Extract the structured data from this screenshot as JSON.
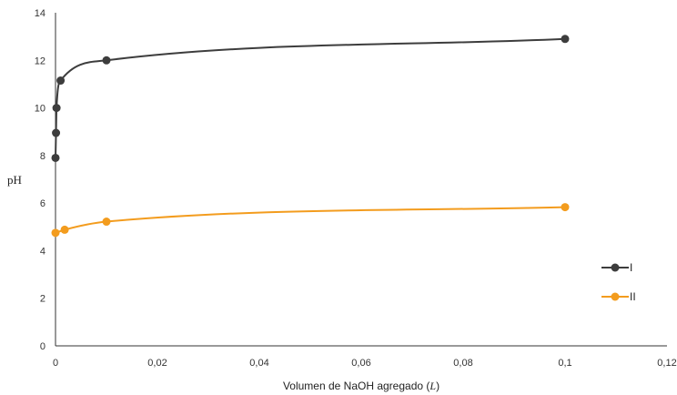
{
  "chart_data": {
    "type": "line",
    "title": "",
    "xlabel": "Volumen de NaOH agregado (",
    "xlabel_var": "L",
    "xlabel_close": ")",
    "ylabel": "pH",
    "xlim": [
      0,
      0.12
    ],
    "ylim": [
      0,
      14
    ],
    "x_ticks": [
      "0",
      "0,02",
      "0,04",
      "0,06",
      "0,08",
      "0,1",
      "0,12"
    ],
    "y_ticks": [
      "0",
      "2",
      "4",
      "6",
      "8",
      "10",
      "12",
      "14"
    ],
    "grid": false,
    "legend_position": "right",
    "series": [
      {
        "name": "I",
        "color": "#3d3d3d",
        "points": [
          [
            0.0,
            7.9
          ],
          [
            0.0001,
            8.95
          ],
          [
            0.0002,
            10.0
          ],
          [
            0.001,
            11.15
          ],
          [
            0.01,
            12.0
          ],
          [
            0.1,
            12.9
          ]
        ]
      },
      {
        "name": "II",
        "color": "#f39c1e",
        "points": [
          [
            0.0,
            4.75
          ],
          [
            0.0018,
            4.88
          ],
          [
            0.01,
            5.22
          ],
          [
            0.1,
            5.83
          ]
        ]
      }
    ]
  }
}
